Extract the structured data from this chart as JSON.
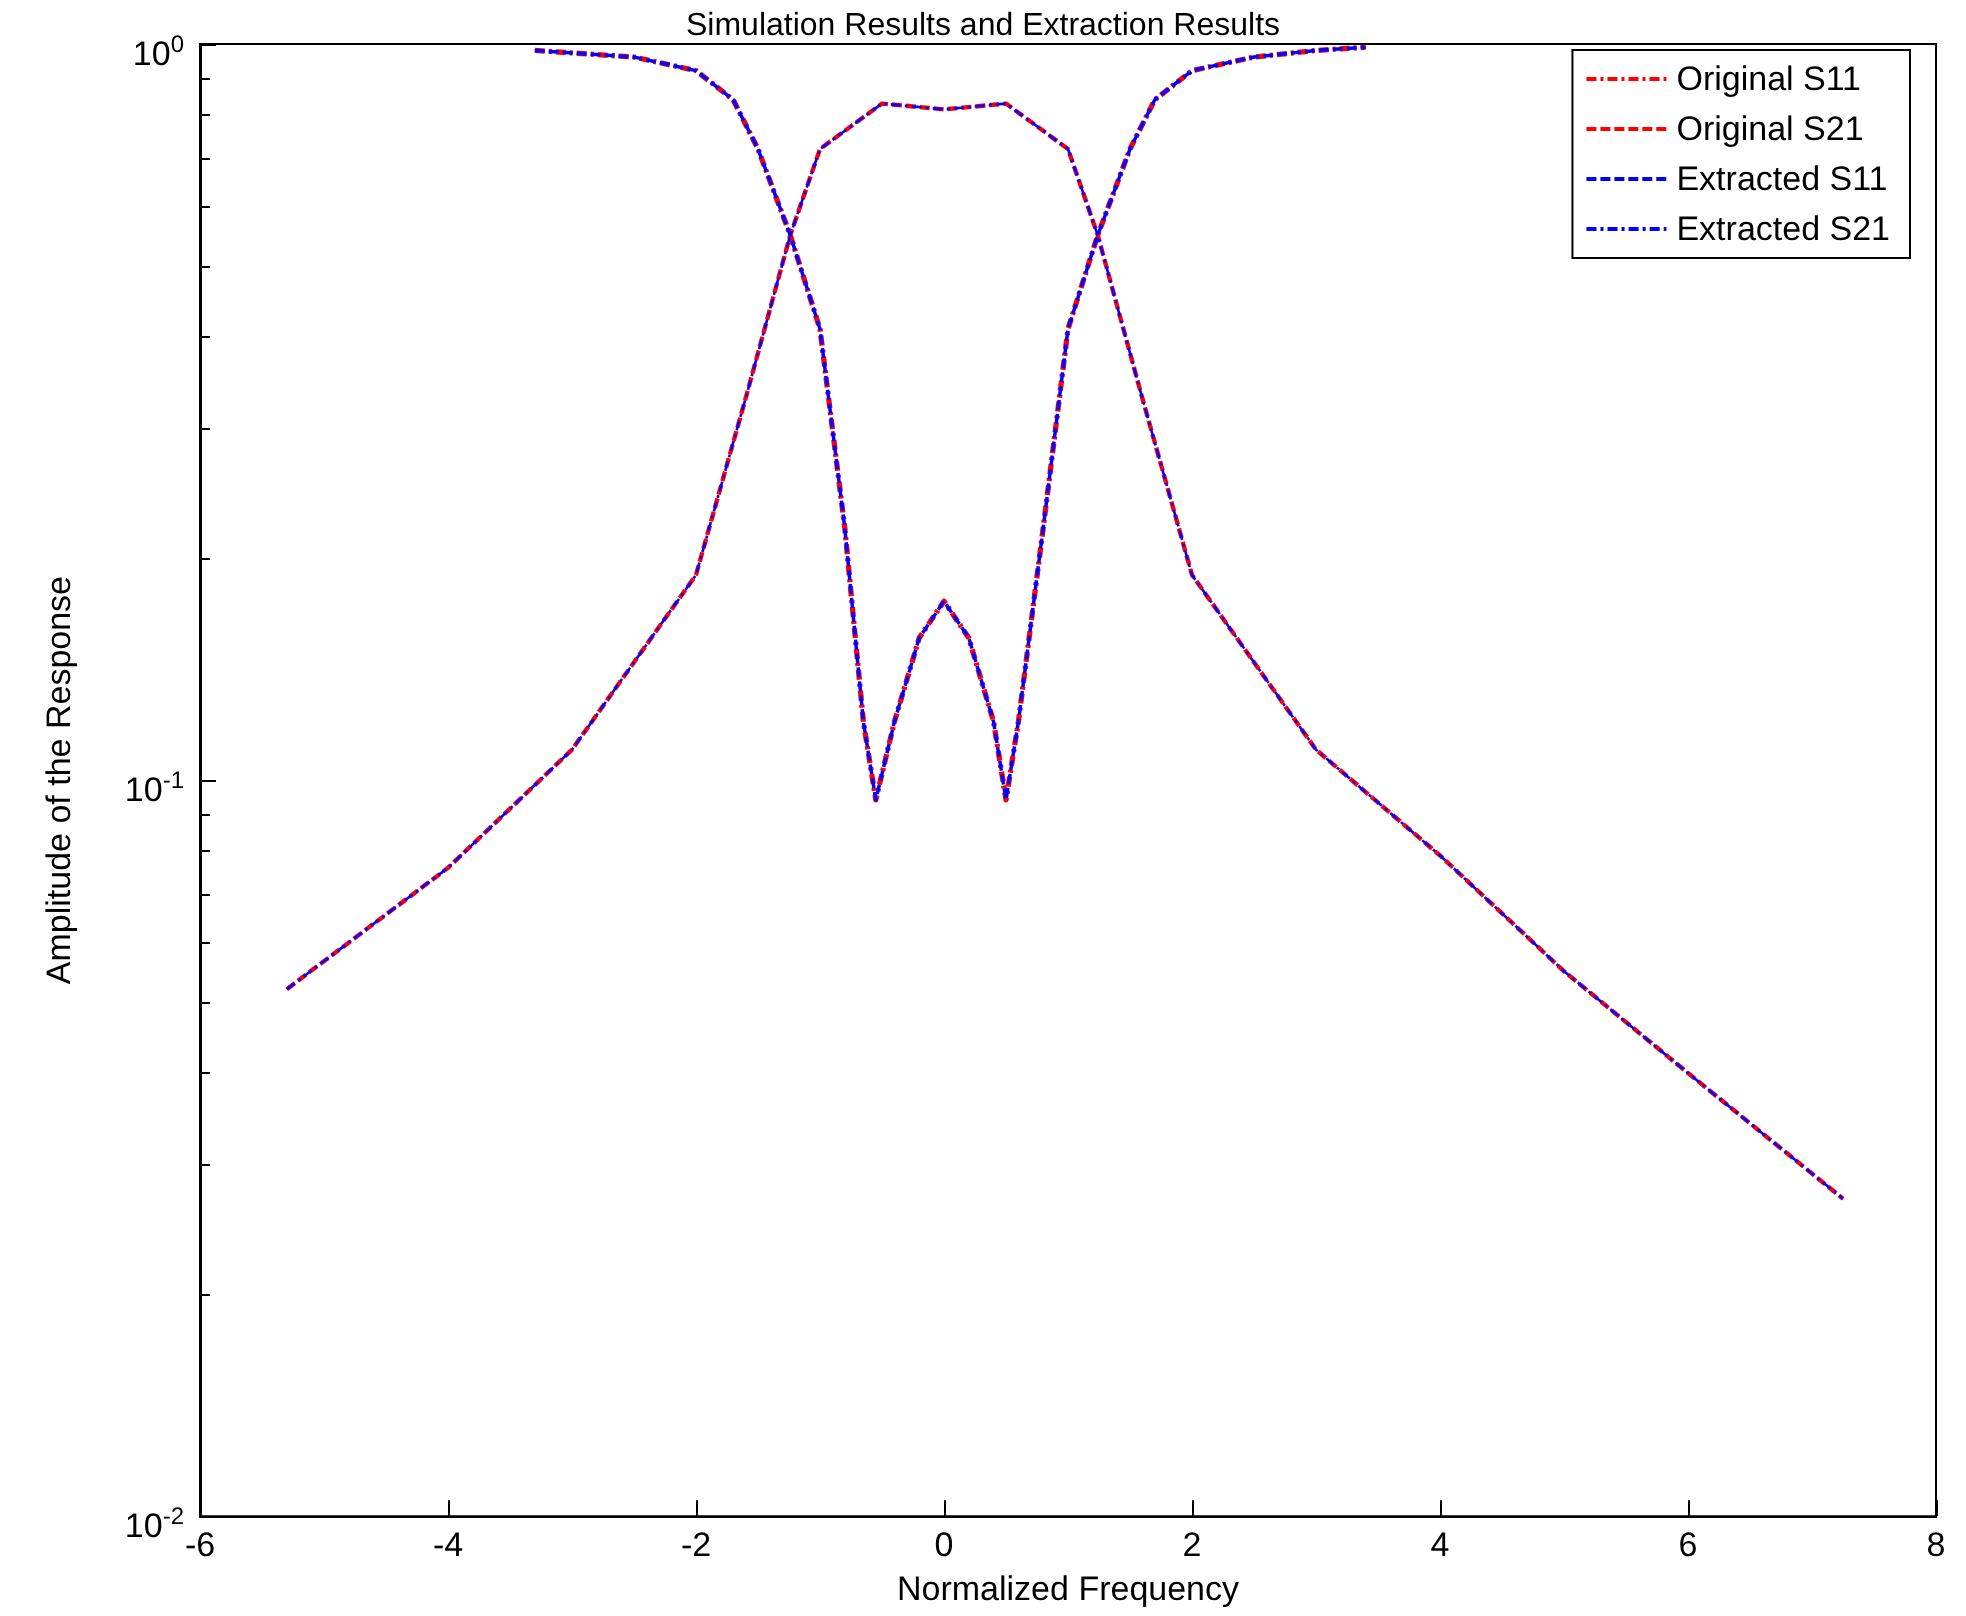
{
  "chart_data": {
    "type": "line",
    "title": "Simulation Results and Extraction Results",
    "xlabel": "Normalized Frequency",
    "ylabel": "Amplitude of the Response",
    "xlim": [
      -6,
      8
    ],
    "xticks": [
      -6,
      -4,
      -2,
      0,
      2,
      4,
      6,
      8
    ],
    "ylim": [
      0.01,
      1
    ],
    "yticks": [
      {
        "value": 0.01,
        "label": "10$^{-2}$"
      },
      {
        "value": 0.1,
        "label": "10$^{-1}$"
      },
      {
        "value": 1,
        "label": "10$^{0}$"
      }
    ],
    "log": "y",
    "grid": false,
    "legend": "top right",
    "marker": "none",
    "series": [
      {
        "name": "Original S11",
        "color": "#ff0000",
        "line_style": "dashdot",
        "x": [
          -3.3,
          -2.5,
          -2,
          -1.7,
          -1.5,
          -1.24,
          -1,
          -0.8,
          -0.65,
          -0.55,
          -0.4,
          -0.2,
          0,
          0.2,
          0.4,
          0.5,
          0.6,
          0.8,
          1,
          1.24,
          1.5,
          1.7,
          2,
          2.5,
          3,
          3.4
        ],
        "values": [
          0.98,
          0.96,
          0.92,
          0.84,
          0.72,
          0.55,
          0.41,
          0.22,
          0.12,
          0.094,
          0.12,
          0.156,
          0.175,
          0.156,
          0.12,
          0.094,
          0.12,
          0.22,
          0.41,
          0.55,
          0.72,
          0.84,
          0.92,
          0.96,
          0.98,
          0.99
        ]
      },
      {
        "name": "Original S21",
        "color": "#ff0000",
        "line_style": "dashed",
        "x": [
          -5.3,
          -4,
          -3,
          -2,
          -1.6,
          -1.24,
          -1,
          -0.5,
          0,
          0.5,
          1,
          1.24,
          1.6,
          2,
          3,
          4,
          5,
          6,
          7.25
        ],
        "values": [
          0.052,
          0.076,
          0.11,
          0.19,
          0.33,
          0.55,
          0.72,
          0.83,
          0.815,
          0.83,
          0.72,
          0.55,
          0.33,
          0.19,
          0.11,
          0.079,
          0.055,
          0.04,
          0.027
        ]
      },
      {
        "name": "Extracted S11",
        "color": "#0000ff",
        "line_style": "dashed",
        "x": [
          -3.3,
          -2.5,
          -2,
          -1.7,
          -1.5,
          -1.24,
          -1,
          -0.8,
          -0.65,
          -0.55,
          -0.4,
          -0.2,
          0,
          0.2,
          0.4,
          0.5,
          0.6,
          0.8,
          1,
          1.24,
          1.5,
          1.7,
          2,
          2.5,
          3,
          3.4
        ],
        "values": [
          0.98,
          0.96,
          0.92,
          0.84,
          0.72,
          0.55,
          0.41,
          0.22,
          0.12,
          0.094,
          0.12,
          0.156,
          0.175,
          0.156,
          0.12,
          0.094,
          0.12,
          0.22,
          0.41,
          0.55,
          0.72,
          0.84,
          0.92,
          0.96,
          0.98,
          0.99
        ]
      },
      {
        "name": "Extracted S21",
        "color": "#0000ff",
        "line_style": "dashdot",
        "x": [
          -5.3,
          -4,
          -3,
          -2,
          -1.6,
          -1.24,
          -1,
          -0.5,
          0,
          0.5,
          1,
          1.24,
          1.6,
          2,
          3,
          4,
          5,
          6,
          7.25
        ],
        "values": [
          0.052,
          0.076,
          0.11,
          0.19,
          0.33,
          0.55,
          0.72,
          0.83,
          0.815,
          0.83,
          0.72,
          0.55,
          0.33,
          0.19,
          0.11,
          0.079,
          0.055,
          0.04,
          0.027
        ]
      }
    ]
  }
}
